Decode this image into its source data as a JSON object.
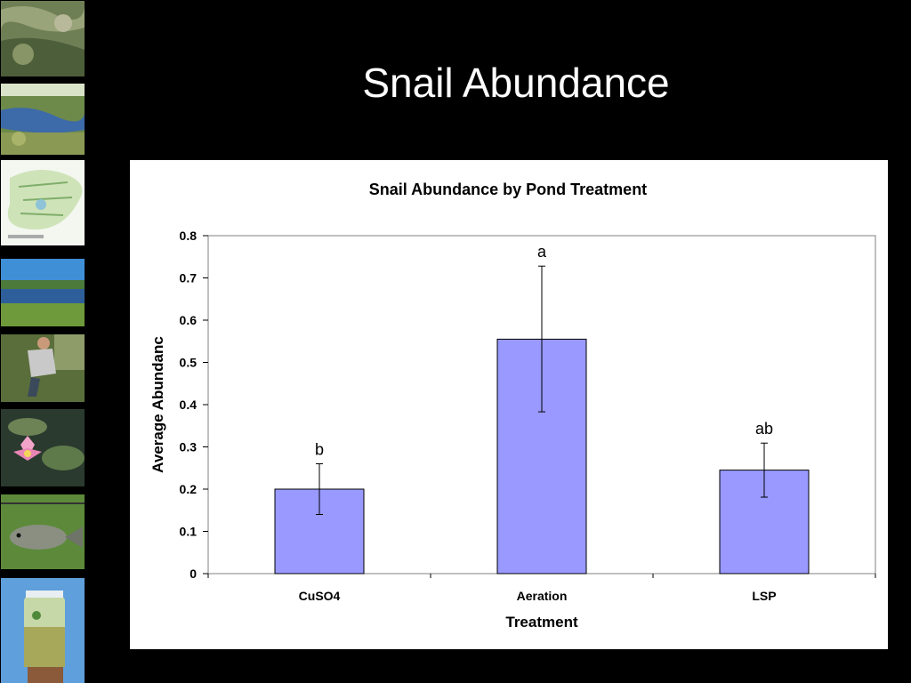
{
  "slide": {
    "title": "Snail Abundance"
  },
  "sidebar": {
    "images": [
      {
        "name": "aerial-pond-photo"
      },
      {
        "name": "marsh-pond-photo"
      },
      {
        "name": "site-map-photo"
      },
      {
        "name": "lake-shore-photo"
      },
      {
        "name": "field-worker-photo"
      },
      {
        "name": "water-lily-photo"
      },
      {
        "name": "fish-on-grass-photo"
      },
      {
        "name": "water-sample-jar-photo"
      }
    ]
  },
  "colors": {
    "bar_fill": "#9999ff",
    "background": "#000000",
    "panel": "#ffffff"
  },
  "chart_data": {
    "type": "bar",
    "title": "Snail Abundance by Pond Treatment",
    "xlabel": "Treatment",
    "ylabel": "Average Abundanc",
    "categories": [
      "CuSO4",
      "Aeration",
      "LSP"
    ],
    "values": [
      0.2,
      0.555,
      0.245
    ],
    "error_low": [
      0.14,
      0.383,
      0.181
    ],
    "error_high": [
      0.26,
      0.728,
      0.309
    ],
    "significance_labels": [
      "b",
      "a",
      "ab"
    ],
    "ylim": [
      0,
      0.8
    ],
    "yticks": [
      "0",
      "0.1",
      "0.2",
      "0.3",
      "0.4",
      "0.5",
      "0.6",
      "0.7",
      "0.8"
    ],
    "ytick_values": [
      0,
      0.1,
      0.2,
      0.3,
      0.4,
      0.5,
      0.6,
      0.7,
      0.8
    ],
    "grid": false,
    "legend": "none"
  }
}
